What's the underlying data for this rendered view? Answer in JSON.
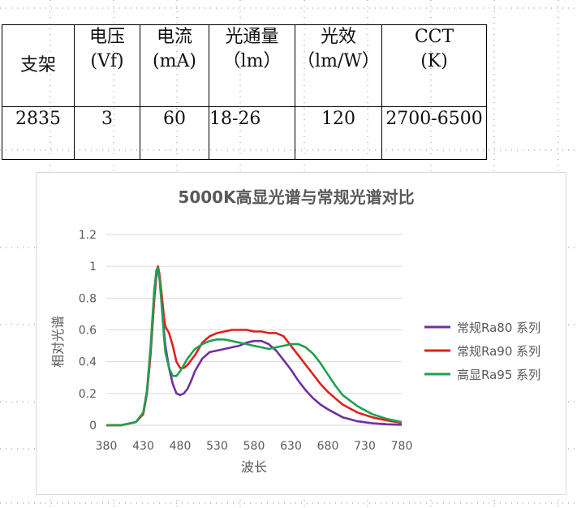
{
  "table": {
    "headers": [
      "支架",
      "电压\n(Vf)",
      "电流\n(mA)",
      "光通量\n（lm）",
      "光效\n（lm/W）",
      "CCT\n(K)"
    ],
    "rows": [
      [
        "2835",
        "3",
        "60",
        "18-26",
        "120",
        "2700-6500"
      ]
    ]
  },
  "chart_data": {
    "type": "line",
    "title": "5000K高显光谱与常规光谱对比",
    "xlabel": "波长",
    "ylabel": "相对光谱",
    "xlim": [
      380,
      780
    ],
    "ylim": [
      0,
      1.2
    ],
    "x_ticks": [
      "380",
      "430",
      "480",
      "530",
      "580",
      "630",
      "680",
      "730",
      "780"
    ],
    "y_ticks": [
      "0",
      "0.2",
      "0.4",
      "0.6",
      "0.8",
      "1",
      "1.2"
    ],
    "grid": true,
    "legend_position": "right",
    "series": [
      {
        "name": "常规Ra80 系列",
        "color": "#7030a0",
        "x": [
          380,
          400,
          420,
          430,
          435,
          440,
          445,
          448,
          450,
          452,
          455,
          458,
          460,
          465,
          470,
          475,
          480,
          485,
          490,
          495,
          500,
          510,
          520,
          530,
          540,
          550,
          560,
          570,
          580,
          590,
          600,
          610,
          620,
          630,
          640,
          650,
          660,
          670,
          680,
          690,
          700,
          720,
          740,
          760,
          780
        ],
        "y": [
          0,
          0,
          0.02,
          0.07,
          0.2,
          0.45,
          0.8,
          0.95,
          0.98,
          0.93,
          0.8,
          0.6,
          0.5,
          0.36,
          0.26,
          0.2,
          0.19,
          0.2,
          0.23,
          0.28,
          0.34,
          0.42,
          0.46,
          0.47,
          0.48,
          0.49,
          0.5,
          0.52,
          0.53,
          0.53,
          0.51,
          0.47,
          0.41,
          0.35,
          0.28,
          0.22,
          0.17,
          0.13,
          0.1,
          0.075,
          0.05,
          0.025,
          0.012,
          0.006,
          0.003
        ]
      },
      {
        "name": "常规Ra90 系列",
        "color": "#e0201c",
        "x": [
          380,
          400,
          420,
          430,
          435,
          440,
          445,
          448,
          450,
          452,
          455,
          458,
          460,
          465,
          470,
          475,
          480,
          485,
          490,
          500,
          510,
          520,
          530,
          540,
          550,
          560,
          570,
          580,
          590,
          600,
          610,
          620,
          630,
          640,
          650,
          660,
          670,
          680,
          690,
          700,
          720,
          740,
          760,
          780
        ],
        "y": [
          0,
          0,
          0.02,
          0.07,
          0.21,
          0.46,
          0.82,
          0.97,
          1.0,
          0.95,
          0.82,
          0.68,
          0.62,
          0.58,
          0.5,
          0.4,
          0.36,
          0.36,
          0.38,
          0.44,
          0.52,
          0.56,
          0.58,
          0.59,
          0.6,
          0.6,
          0.6,
          0.59,
          0.59,
          0.58,
          0.58,
          0.56,
          0.5,
          0.44,
          0.38,
          0.32,
          0.26,
          0.21,
          0.17,
          0.13,
          0.08,
          0.05,
          0.03,
          0.015
        ]
      },
      {
        "name": "高显Ra95 系列",
        "color": "#20a050",
        "x": [
          380,
          400,
          420,
          430,
          435,
          440,
          445,
          448,
          450,
          452,
          455,
          458,
          460,
          465,
          470,
          475,
          480,
          485,
          490,
          500,
          510,
          520,
          530,
          540,
          550,
          560,
          570,
          580,
          590,
          600,
          610,
          620,
          630,
          640,
          650,
          660,
          670,
          680,
          690,
          700,
          720,
          740,
          760,
          780
        ],
        "y": [
          0,
          0,
          0.02,
          0.08,
          0.22,
          0.5,
          0.86,
          0.98,
          0.99,
          0.92,
          0.75,
          0.56,
          0.46,
          0.36,
          0.31,
          0.31,
          0.34,
          0.38,
          0.42,
          0.48,
          0.51,
          0.53,
          0.54,
          0.54,
          0.53,
          0.52,
          0.51,
          0.5,
          0.49,
          0.48,
          0.49,
          0.5,
          0.51,
          0.51,
          0.49,
          0.45,
          0.39,
          0.32,
          0.25,
          0.19,
          0.12,
          0.07,
          0.04,
          0.02
        ]
      }
    ]
  }
}
